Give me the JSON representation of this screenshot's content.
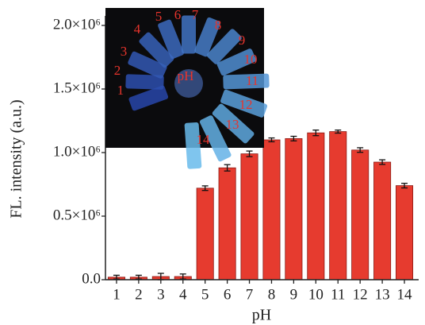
{
  "chart_data": {
    "type": "bar",
    "x_label": "pH",
    "y_label": "FL. intensity (a.u.)",
    "categories": [
      "1",
      "2",
      "3",
      "4",
      "5",
      "6",
      "7",
      "8",
      "9",
      "10",
      "11",
      "12",
      "13",
      "14"
    ],
    "values": [
      20000,
      20000,
      25000,
      25000,
      720000,
      880000,
      990000,
      1100000,
      1110000,
      1155000,
      1165000,
      1020000,
      925000,
      740000
    ],
    "errors": [
      15000,
      15000,
      25000,
      20000,
      18000,
      25000,
      22000,
      15000,
      18000,
      22000,
      12000,
      18000,
      18000,
      18000
    ],
    "color": "#e63b2f",
    "ylim": [
      0,
      2000000
    ],
    "yticks": [
      {
        "value": 0,
        "label": "0.0"
      },
      {
        "value": 500000,
        "label": "0.5×10⁶"
      },
      {
        "value": 1000000,
        "label": "1.0×10⁶"
      },
      {
        "value": 1500000,
        "label": "1.5×10⁶"
      },
      {
        "value": 2000000,
        "label": "2.0×10⁶"
      }
    ],
    "inset": {
      "labels": [
        "1",
        "2",
        "3",
        "4",
        "5",
        "6",
        "7",
        "8",
        "9",
        "10",
        "11",
        "12",
        "13",
        "14"
      ],
      "center_label": "pH"
    }
  }
}
